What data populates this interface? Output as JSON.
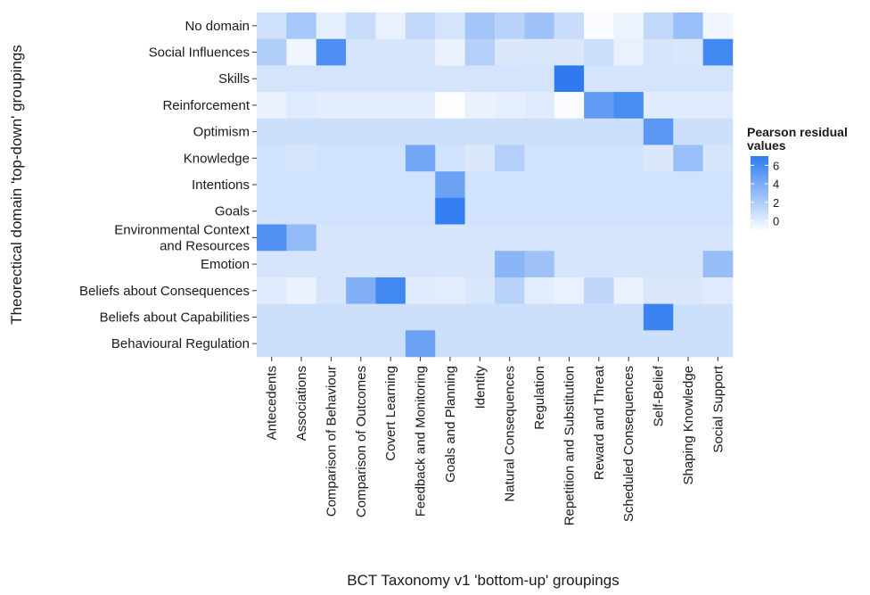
{
  "chart_data": {
    "type": "heatmap",
    "title": "",
    "xlabel": "BCT Taxonomy v1 'bottom-up' groupings",
    "ylabel": "Theorectical domain 'top-down' groupings",
    "x_categories": [
      "Antecedents",
      "Associations",
      "Comparison of Behaviour",
      "Comparison of Outcomes",
      "Covert Learning",
      "Feedback and Monitoring",
      "Goals and Planning",
      "Identity",
      "Natural Consequences",
      "Regulation",
      "Repetition and Substitution",
      "Reward and Threat",
      "Scheduled Consequences",
      "Self-Belief",
      "Shaping Knowledge",
      "Social Support"
    ],
    "y_categories": [
      {
        "name": "No domain",
        "lines": [
          "No domain"
        ]
      },
      {
        "name": "Social Influences",
        "lines": [
          "Social Influences"
        ]
      },
      {
        "name": "Skills",
        "lines": [
          "Skills"
        ]
      },
      {
        "name": "Reinforcement",
        "lines": [
          "Reinforcement"
        ]
      },
      {
        "name": "Optimism",
        "lines": [
          "Optimism"
        ]
      },
      {
        "name": "Knowledge",
        "lines": [
          "Knowledge"
        ]
      },
      {
        "name": "Intentions",
        "lines": [
          "Intentions"
        ]
      },
      {
        "name": "Goals",
        "lines": [
          "Goals"
        ]
      },
      {
        "name": "Environmental Context and Resources",
        "lines": [
          "Environmental Context",
          "and Resources"
        ]
      },
      {
        "name": "Emotion",
        "lines": [
          "Emotion"
        ]
      },
      {
        "name": "Beliefs about Consequences",
        "lines": [
          "Beliefs about Consequences"
        ]
      },
      {
        "name": "Beliefs about Capabilities",
        "lines": [
          "Beliefs about Capabilities"
        ]
      },
      {
        "name": "Behavioural Regulation",
        "lines": [
          "Behavioural Regulation"
        ]
      }
    ],
    "values": [
      [
        0.7,
        2.3,
        -0.2,
        1.0,
        -0.3,
        1.2,
        0.5,
        2.4,
        1.6,
        2.6,
        0.9,
        -1.0,
        -0.5,
        1.2,
        2.8,
        -0.6
      ],
      [
        1.9,
        -0.6,
        5.8,
        0.4,
        0.4,
        0.4,
        -0.4,
        1.8,
        0.2,
        0.3,
        0.2,
        0.8,
        -0.3,
        0.4,
        0.3,
        6.2
      ],
      [
        0.5,
        0.5,
        0.5,
        0.5,
        0.5,
        0.5,
        0.5,
        0.5,
        0.5,
        0.5,
        7.0,
        0.5,
        0.5,
        0.5,
        0.5,
        0.5
      ],
      [
        -0.4,
        0.1,
        -0.1,
        -0.1,
        -0.1,
        -0.1,
        -1.1,
        -0.4,
        -0.2,
        0.0,
        -1.0,
        5.0,
        5.9,
        0.0,
        0.0,
        0.0
      ],
      [
        0.8,
        0.8,
        0.8,
        0.8,
        0.8,
        0.8,
        0.8,
        0.8,
        0.8,
        0.8,
        0.8,
        0.8,
        0.8,
        5.2,
        0.8,
        0.8
      ],
      [
        0.6,
        0.4,
        0.6,
        0.6,
        0.6,
        4.3,
        0.6,
        0.2,
        1.8,
        0.6,
        0.6,
        0.6,
        0.6,
        0.2,
        2.8,
        0.4
      ],
      [
        0.6,
        0.6,
        0.6,
        0.6,
        0.6,
        0.6,
        4.6,
        0.6,
        0.6,
        0.6,
        0.6,
        0.6,
        0.6,
        0.6,
        0.6,
        0.6
      ],
      [
        0.6,
        0.6,
        0.6,
        0.6,
        0.6,
        0.6,
        6.8,
        0.6,
        0.6,
        0.6,
        0.6,
        0.6,
        0.6,
        0.6,
        0.6,
        0.6
      ],
      [
        5.7,
        3.1,
        0.4,
        0.4,
        0.4,
        0.4,
        0.4,
        0.4,
        0.4,
        0.4,
        0.4,
        0.4,
        0.4,
        0.4,
        0.4,
        0.4
      ],
      [
        0.4,
        0.4,
        0.4,
        0.4,
        0.4,
        0.4,
        0.4,
        0.4,
        3.4,
        2.6,
        0.4,
        0.4,
        0.4,
        0.4,
        0.4,
        2.9
      ],
      [
        0.0,
        -0.4,
        0.4,
        3.8,
        6.2,
        0.0,
        -0.1,
        0.3,
        1.6,
        -0.1,
        -0.3,
        1.3,
        -0.3,
        0.2,
        0.2,
        0.0
      ],
      [
        0.8,
        0.8,
        0.8,
        0.8,
        0.8,
        0.8,
        0.8,
        0.8,
        0.8,
        0.8,
        0.8,
        0.8,
        0.8,
        6.5,
        0.8,
        0.8
      ],
      [
        0.8,
        0.8,
        0.8,
        0.8,
        0.8,
        4.6,
        0.8,
        0.8,
        0.8,
        0.8,
        0.8,
        0.8,
        0.8,
        0.8,
        0.8,
        0.8
      ]
    ],
    "color_scale": {
      "min": -1.2,
      "max": 7.0,
      "low_color": "#ffffff",
      "high_color": "#2e7bf0"
    },
    "legend": {
      "title_lines": [
        "Pearson residual",
        "values"
      ],
      "ticks": [
        0,
        2,
        4,
        6
      ],
      "position": "right"
    },
    "grid": false
  }
}
